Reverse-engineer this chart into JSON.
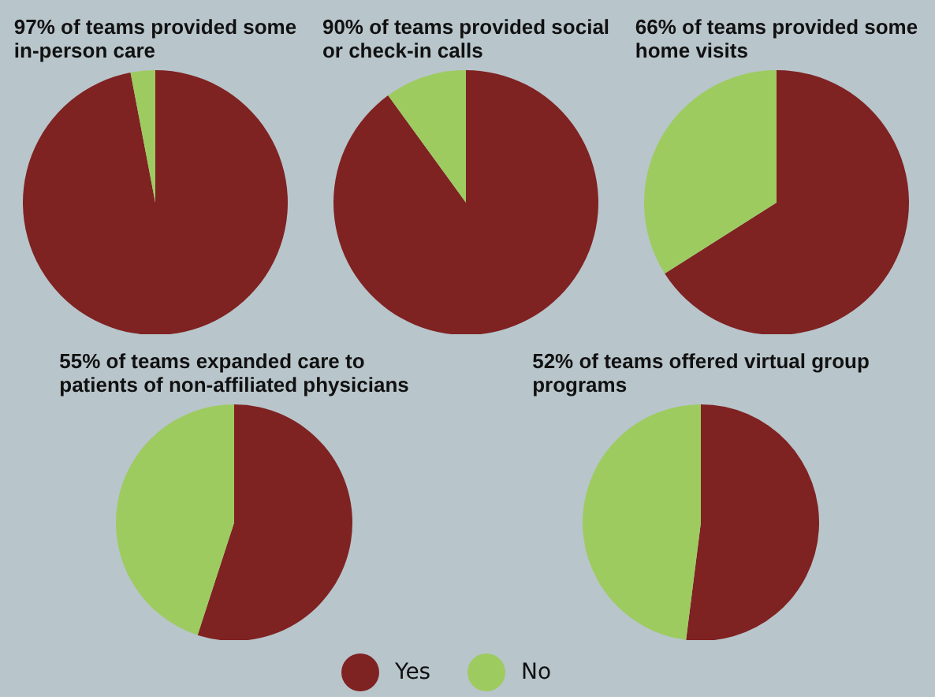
{
  "chart_data": [
    {
      "type": "pie",
      "title": "97% of teams provided some in-person care",
      "categories": [
        "Yes",
        "No"
      ],
      "values": [
        97,
        3
      ],
      "colors": [
        "#7f2222",
        "#9dcb60"
      ],
      "legend": "bottom"
    },
    {
      "type": "pie",
      "title": "90% of teams provided social or check-in calls",
      "categories": [
        null,
        null
      ],
      "values": [
        90,
        10
      ],
      "colors": [
        "#7f2222",
        "#9dcb60"
      ]
    },
    {
      "type": "pie",
      "title": "66% of teams provided some home visits",
      "categories": [
        null,
        null
      ],
      "values": [
        66,
        34
      ],
      "colors": [
        "#7f2222",
        "#9dcb60"
      ]
    },
    {
      "type": "pie",
      "title": "55% of teams expanded care to patients of non-affiliated physicians",
      "categories": [
        null,
        null
      ],
      "values": [
        55,
        45
      ],
      "colors": [
        "#7f2222",
        "#9dcb60"
      ]
    },
    {
      "type": "pie",
      "title": "52% of teams offered virtual group programs",
      "categories": [
        null,
        null
      ],
      "values": [
        52,
        48
      ],
      "colors": [
        "#7f2222",
        "#9dcb60"
      ]
    }
  ]
}
